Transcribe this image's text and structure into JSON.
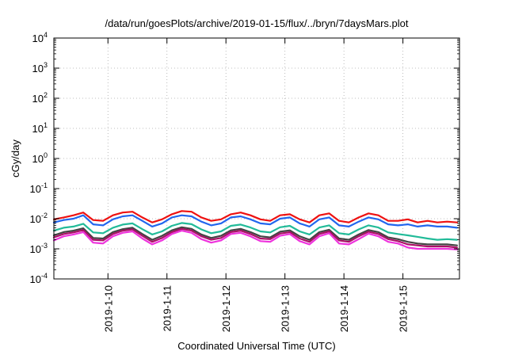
{
  "chart_data": {
    "type": "line",
    "title": "/data/run/goesPlots/archive/2019-01-15/flux/../bryn/7daysMars.plot",
    "xlabel": "Coordinated Universal Time (UTC)",
    "ylabel": "cGy/day",
    "y_scale": "log",
    "ylim": [
      0.0001,
      10000
    ],
    "y_ticks": [
      {
        "value": 0.0001,
        "base": "10",
        "exp": "-4"
      },
      {
        "value": 0.001,
        "base": "10",
        "exp": "-3"
      },
      {
        "value": 0.01,
        "base": "10",
        "exp": "-2"
      },
      {
        "value": 0.1,
        "base": "10",
        "exp": "-1"
      },
      {
        "value": 1,
        "base": "10",
        "exp": "0"
      },
      {
        "value": 10,
        "base": "10",
        "exp": "1"
      },
      {
        "value": 100,
        "base": "10",
        "exp": "2"
      },
      {
        "value": 1000,
        "base": "10",
        "exp": "3"
      },
      {
        "value": 10000,
        "base": "10",
        "exp": "4"
      }
    ],
    "xlim": [
      "2019-01-09T02:00",
      "2019-01-15T23:00"
    ],
    "x_ticks": [
      {
        "value": "2019-01-10T00:00",
        "label": "2019-1-10"
      },
      {
        "value": "2019-01-11T00:00",
        "label": "2019-1-11"
      },
      {
        "value": "2019-01-12T00:00",
        "label": "2019-1-12"
      },
      {
        "value": "2019-01-13T00:00",
        "label": "2019-1-13"
      },
      {
        "value": "2019-01-14T00:00",
        "label": "2019-1-14"
      },
      {
        "value": "2019-01-15T00:00",
        "label": "2019-1-15"
      }
    ],
    "grid": true,
    "x": [
      "2019-01-09T02:00",
      "2019-01-09T06:00",
      "2019-01-09T10:00",
      "2019-01-09T14:00",
      "2019-01-09T18:00",
      "2019-01-09T22:00",
      "2019-01-10T02:00",
      "2019-01-10T06:00",
      "2019-01-10T10:00",
      "2019-01-10T14:00",
      "2019-01-10T18:00",
      "2019-01-10T22:00",
      "2019-01-11T02:00",
      "2019-01-11T06:00",
      "2019-01-11T10:00",
      "2019-01-11T14:00",
      "2019-01-11T18:00",
      "2019-01-11T22:00",
      "2019-01-12T02:00",
      "2019-01-12T06:00",
      "2019-01-12T10:00",
      "2019-01-12T14:00",
      "2019-01-12T18:00",
      "2019-01-12T22:00",
      "2019-01-13T02:00",
      "2019-01-13T06:00",
      "2019-01-13T10:00",
      "2019-01-13T14:00",
      "2019-01-13T18:00",
      "2019-01-13T22:00",
      "2019-01-14T02:00",
      "2019-01-14T06:00",
      "2019-01-14T10:00",
      "2019-01-14T14:00",
      "2019-01-14T18:00",
      "2019-01-14T22:00",
      "2019-01-15T02:00",
      "2019-01-15T06:00",
      "2019-01-15T10:00",
      "2019-01-15T14:00",
      "2019-01-15T18:00",
      "2019-01-15T22:00"
    ],
    "series": [
      {
        "color": "#ee1111",
        "values": [
          0.0095,
          0.011,
          0.013,
          0.016,
          0.009,
          0.0085,
          0.013,
          0.016,
          0.017,
          0.011,
          0.0075,
          0.0095,
          0.014,
          0.018,
          0.017,
          0.011,
          0.0085,
          0.0095,
          0.014,
          0.016,
          0.013,
          0.0095,
          0.0085,
          0.013,
          0.014,
          0.0095,
          0.0075,
          0.013,
          0.015,
          0.0085,
          0.0075,
          0.011,
          0.015,
          0.013,
          0.0085,
          0.0085,
          0.0095,
          0.0075,
          0.0085,
          0.0075,
          0.008,
          0.0075
        ]
      },
      {
        "color": "#2266ee",
        "values": [
          0.0075,
          0.009,
          0.01,
          0.013,
          0.0065,
          0.006,
          0.0095,
          0.012,
          0.013,
          0.0085,
          0.0055,
          0.007,
          0.011,
          0.013,
          0.012,
          0.008,
          0.006,
          0.007,
          0.011,
          0.012,
          0.0095,
          0.007,
          0.0065,
          0.01,
          0.011,
          0.007,
          0.0055,
          0.0095,
          0.011,
          0.006,
          0.0055,
          0.008,
          0.011,
          0.0095,
          0.0065,
          0.006,
          0.0065,
          0.0055,
          0.006,
          0.0055,
          0.0055,
          0.005
        ]
      },
      {
        "color": "#22bb99",
        "values": [
          0.004,
          0.005,
          0.0055,
          0.0068,
          0.0035,
          0.0033,
          0.005,
          0.0064,
          0.007,
          0.0045,
          0.003,
          0.0038,
          0.0058,
          0.0072,
          0.0066,
          0.0044,
          0.0033,
          0.0038,
          0.0058,
          0.0064,
          0.0051,
          0.0038,
          0.0035,
          0.0052,
          0.0058,
          0.0038,
          0.003,
          0.0051,
          0.006,
          0.0033,
          0.003,
          0.0044,
          0.006,
          0.0051,
          0.0035,
          0.0031,
          0.0028,
          0.0025,
          0.0022,
          0.002,
          0.0021,
          0.002
        ]
      },
      {
        "color": "#444444",
        "values": [
          0.0028,
          0.0036,
          0.004,
          0.0048,
          0.0023,
          0.0022,
          0.0036,
          0.0045,
          0.005,
          0.0031,
          0.002,
          0.0027,
          0.0041,
          0.0052,
          0.0046,
          0.003,
          0.0023,
          0.0027,
          0.0041,
          0.0046,
          0.0036,
          0.0026,
          0.0024,
          0.0037,
          0.0041,
          0.0026,
          0.002,
          0.0036,
          0.0043,
          0.0022,
          0.002,
          0.003,
          0.0042,
          0.0036,
          0.0024,
          0.0021,
          0.0017,
          0.0015,
          0.0014,
          0.0014,
          0.0014,
          0.0013
        ]
      },
      {
        "color": "#aa1166",
        "values": [
          0.0024,
          0.0031,
          0.0035,
          0.0042,
          0.002,
          0.0019,
          0.0031,
          0.004,
          0.0044,
          0.0027,
          0.0017,
          0.0023,
          0.0036,
          0.0046,
          0.004,
          0.0026,
          0.002,
          0.0023,
          0.0036,
          0.004,
          0.0031,
          0.0022,
          0.0021,
          0.0032,
          0.0036,
          0.0022,
          0.0017,
          0.0031,
          0.0038,
          0.0019,
          0.0017,
          0.0026,
          0.0037,
          0.0031,
          0.0021,
          0.0018,
          0.0014,
          0.0013,
          0.0012,
          0.0012,
          0.0012,
          0.0011
        ]
      },
      {
        "color": "#ee33dd",
        "values": [
          0.0019,
          0.0026,
          0.003,
          0.0036,
          0.0016,
          0.0015,
          0.0026,
          0.0034,
          0.0038,
          0.0022,
          0.0014,
          0.0019,
          0.0031,
          0.004,
          0.0034,
          0.0021,
          0.0016,
          0.0019,
          0.0031,
          0.0034,
          0.0026,
          0.0018,
          0.0017,
          0.0027,
          0.0031,
          0.0018,
          0.0014,
          0.0026,
          0.0033,
          0.0015,
          0.0014,
          0.0021,
          0.0032,
          0.0026,
          0.0017,
          0.0015,
          0.0011,
          0.001,
          0.001,
          0.001,
          0.001,
          0.00095
        ]
      }
    ]
  }
}
